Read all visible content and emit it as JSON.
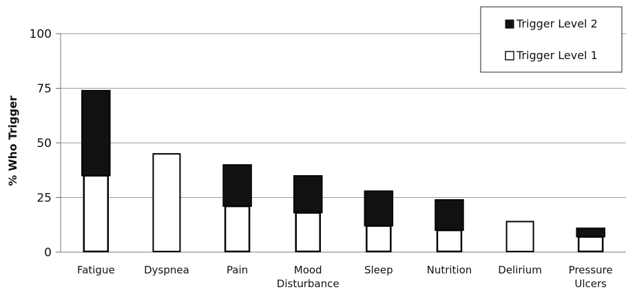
{
  "chart_data": {
    "type": "bar",
    "stacked": true,
    "title": "",
    "xlabel": "",
    "ylabel": "% Who Trigger",
    "ylim": [
      0,
      100
    ],
    "yticks": [
      0,
      25,
      50,
      75,
      100
    ],
    "categories": [
      [
        "Fatigue"
      ],
      [
        "Dyspnea"
      ],
      [
        "Pain"
      ],
      [
        "Mood",
        "Disturbance"
      ],
      [
        "Sleep"
      ],
      [
        "Nutrition"
      ],
      [
        "Delirium"
      ],
      [
        "Pressure",
        "Ulcers"
      ]
    ],
    "series": [
      {
        "name": "Trigger Level 1",
        "color": "#ffffff",
        "values": [
          35,
          45,
          21,
          18,
          12,
          10,
          14,
          7
        ]
      },
      {
        "name": "Trigger Level 2",
        "color": "#111111",
        "values": [
          39,
          0,
          19,
          17,
          16,
          14,
          0,
          4
        ]
      }
    ],
    "legend": {
      "position": "top-right",
      "entries": [
        "Trigger Level 2",
        "Trigger Level 1"
      ]
    },
    "grid": true
  }
}
